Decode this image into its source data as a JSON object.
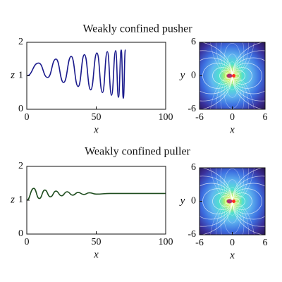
{
  "chart_data": [
    {
      "type": "line",
      "title": "Weakly confined pusher",
      "x_label": "x",
      "y_label": "z",
      "color": "#1a1a8c",
      "x": [
        0,
        8.5,
        15,
        21,
        26.5,
        32,
        37,
        41.5,
        46,
        50.5,
        54.5,
        58,
        61,
        64,
        66,
        68,
        69.5,
        71
      ],
      "values": [
        1.0,
        1.38,
        0.95,
        1.5,
        0.8,
        1.58,
        0.68,
        1.63,
        0.58,
        1.68,
        0.5,
        1.72,
        0.42,
        1.75,
        0.36,
        1.77,
        0.33,
        1.78
      ],
      "xlim": [
        0,
        100
      ],
      "xticks": [
        0,
        50,
        100
      ],
      "ylim": [
        0,
        2
      ],
      "yticks": [
        0,
        1,
        2
      ]
    },
    {
      "type": "streamplot",
      "x_label": "x",
      "y_label": "y",
      "xlim": [
        -6,
        6
      ],
      "xticks": [
        -6,
        0,
        6
      ],
      "ylim": [
        -6,
        6
      ],
      "yticks": [
        -6,
        0,
        6
      ]
    },
    {
      "type": "line",
      "title": "Weakly confined puller",
      "x_label": "x",
      "y_label": "z",
      "color": "#1f4d1f",
      "x": [
        0,
        5,
        9,
        13,
        17,
        21,
        25,
        29,
        33,
        37,
        41,
        45,
        50,
        60,
        70,
        80,
        90,
        100
      ],
      "values": [
        1.0,
        1.35,
        1.05,
        1.3,
        1.1,
        1.27,
        1.13,
        1.25,
        1.15,
        1.23,
        1.17,
        1.22,
        1.18,
        1.2,
        1.2,
        1.2,
        1.2,
        1.2
      ],
      "xlim": [
        0,
        100
      ],
      "xticks": [
        0,
        50,
        100
      ],
      "ylim": [
        0,
        2
      ],
      "yticks": [
        0,
        1,
        2
      ]
    },
    {
      "type": "streamplot",
      "x_label": "x",
      "y_label": "y",
      "xlim": [
        -6,
        6
      ],
      "xticks": [
        -6,
        0,
        6
      ],
      "ylim": [
        -6,
        6
      ],
      "yticks": [
        -6,
        0,
        6
      ]
    }
  ]
}
